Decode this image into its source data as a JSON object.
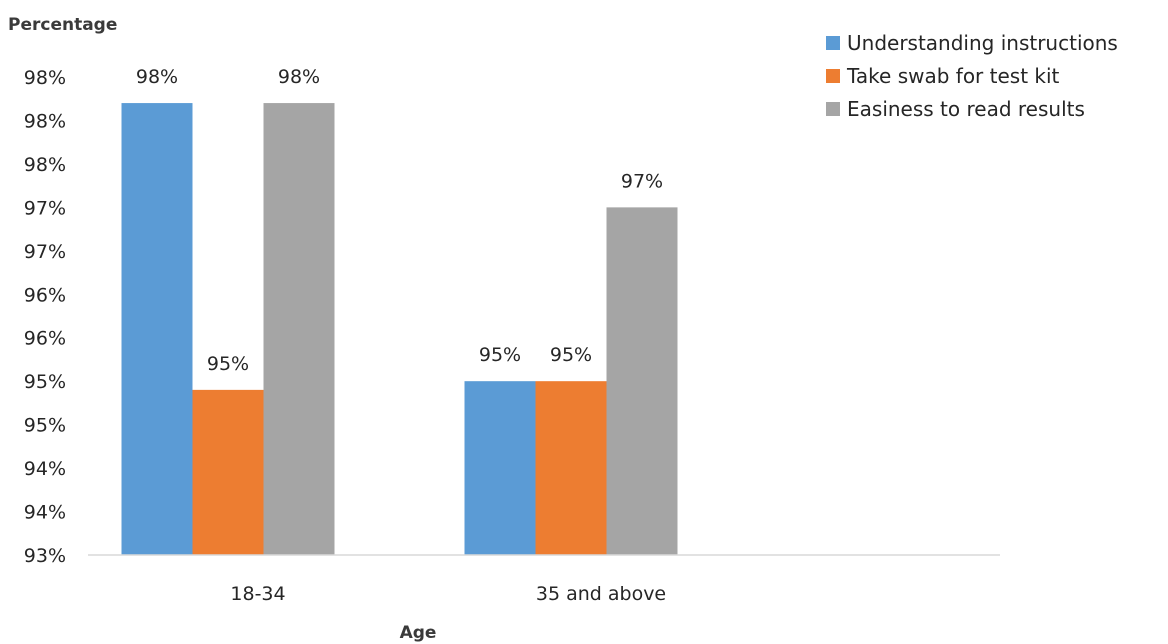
{
  "chart_data": {
    "type": "bar",
    "ylabel": "Percentage",
    "xlabel": "Age",
    "categories": [
      "18-34",
      "35 and above"
    ],
    "series": [
      {
        "name": "Understanding instructions",
        "color": "#5b9bd5",
        "values": [
          98.2,
          95.0
        ],
        "labels": [
          "98%",
          "95%"
        ]
      },
      {
        "name": "Take swab for test kit",
        "color": "#ed7d31",
        "values": [
          94.9,
          95.0
        ],
        "labels": [
          "95%",
          "95%"
        ]
      },
      {
        "name": "Easiness to read results",
        "color": "#a5a5a5",
        "values": [
          98.2,
          97.0
        ],
        "labels": [
          "98%",
          "97%"
        ]
      }
    ],
    "ylim": [
      93,
      98.5
    ],
    "yticks": [
      93,
      93.5,
      94,
      94.5,
      95,
      95.5,
      96,
      96.5,
      97,
      97.5,
      98,
      98.5
    ],
    "ytick_labels": [
      "93%",
      "94%",
      "94%",
      "95%",
      "95%",
      "96%",
      "96%",
      "97%",
      "97%",
      "98%",
      "98%",
      "98%"
    ],
    "legend_position": "top-right",
    "grid": false
  }
}
